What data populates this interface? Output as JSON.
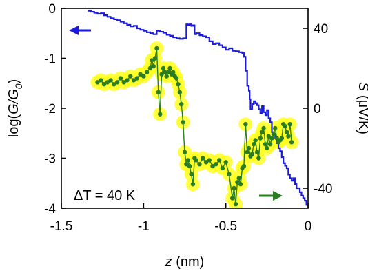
{
  "chart_data": {
    "type": "line",
    "x_axis": {
      "label_var": "z",
      "label_unit": " (nm)",
      "lim": [
        -1.5,
        0
      ],
      "ticks": [
        -1.5,
        -1,
        -0.5,
        0
      ],
      "tick_labels": [
        "-1.5",
        "-1",
        "-0.5",
        "0"
      ]
    },
    "y_left": {
      "label_prefix": "log(",
      "label_var": "G/G",
      "label_sub": "0",
      "label_suffix": ")",
      "lim": [
        -4,
        0
      ],
      "ticks": [
        0,
        -1,
        -2,
        -3,
        -4
      ],
      "tick_labels": [
        "0",
        "-1",
        "-2",
        "-3",
        "-4"
      ]
    },
    "y_right": {
      "label_var": "S",
      "label_unit": " (μV/K)",
      "lim": [
        -50,
        50
      ],
      "ticks": [
        40,
        0,
        -40
      ],
      "tick_labels": [
        "40",
        "0",
        "-40"
      ]
    },
    "annotation": "ΔT = 40 K",
    "series": [
      {
        "axis": "left",
        "color": "#1a1adb",
        "x": [
          -1.34,
          -1.32,
          -1.3,
          -1.28,
          -1.26,
          -1.24,
          -1.22,
          -1.2,
          -1.18,
          -1.16,
          -1.14,
          -1.12,
          -1.1,
          -1.08,
          -1.06,
          -1.04,
          -1.02,
          -1.0,
          -0.98,
          -0.96,
          -0.94,
          -0.92,
          -0.9,
          -0.88,
          -0.86,
          -0.84,
          -0.82,
          -0.8,
          -0.78,
          -0.76,
          -0.74,
          -0.73,
          -0.72,
          -0.71,
          -0.7,
          -0.69,
          -0.68,
          -0.66,
          -0.64,
          -0.62,
          -0.6,
          -0.58,
          -0.56,
          -0.54,
          -0.52,
          -0.5,
          -0.48,
          -0.46,
          -0.44,
          -0.42,
          -0.4,
          -0.39,
          -0.38,
          -0.37,
          -0.36,
          -0.355,
          -0.35,
          -0.34,
          -0.33,
          -0.32,
          -0.31,
          -0.3,
          -0.29,
          -0.28,
          -0.27,
          -0.26,
          -0.25,
          -0.24,
          -0.23,
          -0.22,
          -0.21,
          -0.2,
          -0.19,
          -0.18,
          -0.17,
          -0.16,
          -0.15,
          -0.14,
          -0.13,
          -0.12,
          -0.11,
          -0.1,
          -0.09,
          -0.08,
          -0.07,
          -0.06,
          -0.05,
          -0.04,
          -0.03,
          -0.02,
          -0.01
        ],
        "y": [
          -0.05,
          -0.07,
          -0.09,
          -0.11,
          -0.1,
          -0.14,
          -0.17,
          -0.2,
          -0.22,
          -0.24,
          -0.27,
          -0.3,
          -0.33,
          -0.36,
          -0.35,
          -0.4,
          -0.43,
          -0.45,
          -0.48,
          -0.5,
          -0.52,
          -0.45,
          -0.47,
          -0.49,
          -0.53,
          -0.55,
          -0.58,
          -0.6,
          -0.61,
          -0.6,
          -0.32,
          -0.33,
          -0.32,
          -0.35,
          -0.34,
          -0.52,
          -0.5,
          -0.54,
          -0.56,
          -0.58,
          -0.66,
          -0.72,
          -0.7,
          -0.74,
          -0.78,
          -0.83,
          -0.8,
          -0.85,
          -0.86,
          -0.88,
          -0.9,
          -0.97,
          -1.25,
          -1.55,
          -1.65,
          -1.82,
          -2.02,
          -1.92,
          -1.86,
          -1.9,
          -1.94,
          -2.02,
          -2.1,
          -1.96,
          -2.08,
          -2.14,
          -2.04,
          -2.2,
          -2.28,
          -2.48,
          -2.55,
          -2.6,
          -2.7,
          -2.8,
          -2.86,
          -2.98,
          -3.1,
          -3.15,
          -3.2,
          -3.33,
          -3.4,
          -3.45,
          -3.4,
          -3.52,
          -3.6,
          -3.6,
          -3.68,
          -3.75,
          -3.8,
          -3.85,
          -3.95
        ]
      },
      {
        "axis": "right",
        "color": "#2a7d22",
        "x": [
          -1.28,
          -1.26,
          -1.24,
          -1.22,
          -1.2,
          -1.18,
          -1.16,
          -1.14,
          -1.12,
          -1.1,
          -1.08,
          -1.06,
          -1.04,
          -1.02,
          -1.0,
          -0.98,
          -0.96,
          -0.95,
          -0.94,
          -0.93,
          -0.92,
          -0.91,
          -0.9,
          -0.89,
          -0.88,
          -0.87,
          -0.86,
          -0.85,
          -0.84,
          -0.83,
          -0.82,
          -0.81,
          -0.8,
          -0.79,
          -0.78,
          -0.77,
          -0.76,
          -0.75,
          -0.74,
          -0.73,
          -0.72,
          -0.71,
          -0.7,
          -0.69,
          -0.68,
          -0.66,
          -0.64,
          -0.62,
          -0.6,
          -0.58,
          -0.56,
          -0.54,
          -0.52,
          -0.5,
          -0.48,
          -0.46,
          -0.45,
          -0.44,
          -0.43,
          -0.42,
          -0.41,
          -0.4,
          -0.39,
          -0.38,
          -0.37,
          -0.36,
          -0.35,
          -0.34,
          -0.33,
          -0.32,
          -0.31,
          -0.3,
          -0.29,
          -0.28,
          -0.27,
          -0.26,
          -0.25,
          -0.24,
          -0.23,
          -0.22,
          -0.21,
          -0.2,
          -0.19,
          -0.18,
          -0.17,
          -0.16,
          -0.15,
          -0.14,
          -0.13,
          -0.12,
          -0.11,
          -0.1
        ],
        "y": [
          13,
          14,
          12,
          13,
          14,
          12,
          13,
          15,
          13,
          14,
          16,
          14,
          15,
          17,
          16,
          18,
          20,
          24,
          21,
          25,
          30,
          8,
          -3,
          17,
          20,
          18,
          16,
          18,
          20,
          17,
          18,
          16,
          15,
          12,
          8,
          2,
          -7,
          -22,
          -28,
          -26,
          -29,
          -33,
          -38,
          -25,
          -26,
          -28,
          -25,
          -27,
          -26,
          -29,
          -28,
          -26,
          -30,
          -27,
          -33,
          -45,
          -40,
          -48,
          -37,
          -35,
          -38,
          -30,
          -29,
          -8,
          -22,
          -20,
          -24,
          -23,
          -18,
          -16,
          -22,
          -25,
          -15,
          -12,
          -10,
          -18,
          -20,
          -14,
          -18,
          -15,
          -13,
          -10,
          -15,
          -17,
          -16,
          -15,
          -8,
          -9,
          -12,
          -14,
          -8,
          -17
        ]
      }
    ]
  }
}
